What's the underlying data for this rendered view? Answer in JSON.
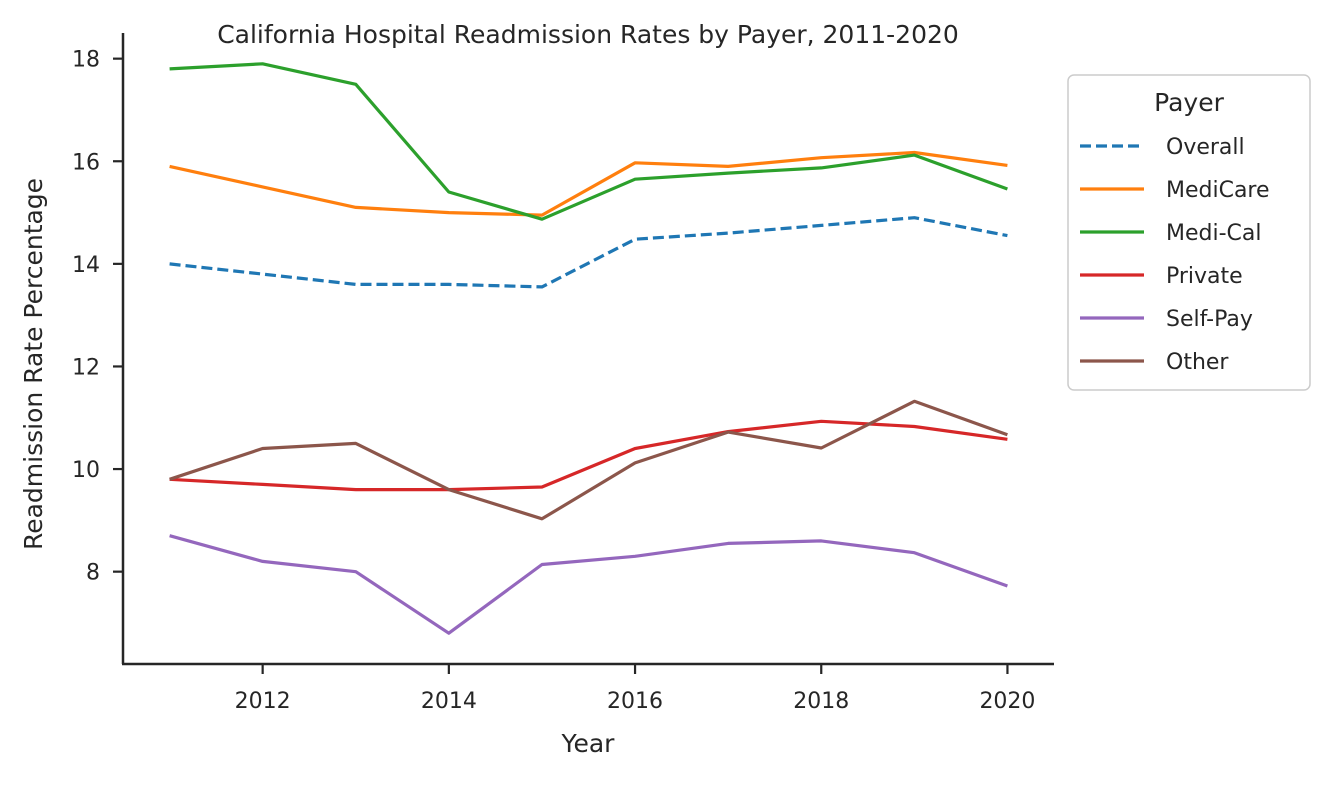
{
  "chart_data": {
    "type": "line",
    "title": "California Hospital Readmission Rates by Payer, 2011-2020",
    "xlabel": "Year",
    "ylabel": "Readmission Rate Percentage",
    "x": [
      2011,
      2012,
      2013,
      2014,
      2015,
      2016,
      2017,
      2018,
      2019,
      2020
    ],
    "xlim": [
      2010.5,
      2020.5
    ],
    "ylim": [
      6.2,
      18.5
    ],
    "xticks": [
      2012,
      2014,
      2016,
      2018,
      2020
    ],
    "yticks": [
      8,
      10,
      12,
      14,
      16,
      18
    ],
    "grid": false,
    "legend": {
      "title": "Payer",
      "placement": "outside-right"
    },
    "series": [
      {
        "name": "Overall",
        "color": "#1f77b4",
        "style": "dashed",
        "values": [
          14.0,
          13.8,
          13.6,
          13.6,
          13.55,
          14.48,
          14.6,
          14.75,
          14.9,
          14.55
        ]
      },
      {
        "name": "MediCare",
        "color": "#ff7f0e",
        "style": "solid",
        "values": [
          15.9,
          15.5,
          15.1,
          15.0,
          14.95,
          15.97,
          15.9,
          16.07,
          16.17,
          15.92
        ]
      },
      {
        "name": "Medi-Cal",
        "color": "#2ca02c",
        "style": "solid",
        "values": [
          17.8,
          17.9,
          17.5,
          15.4,
          14.87,
          15.65,
          15.77,
          15.87,
          16.12,
          15.46
        ]
      },
      {
        "name": "Private",
        "color": "#d62728",
        "style": "solid",
        "values": [
          9.8,
          9.7,
          9.6,
          9.6,
          9.65,
          10.4,
          10.73,
          10.93,
          10.83,
          10.58
        ]
      },
      {
        "name": "Self-Pay",
        "color": "#9467bd",
        "style": "solid",
        "values": [
          8.7,
          8.2,
          8.0,
          6.8,
          8.14,
          8.3,
          8.55,
          8.6,
          8.37,
          7.72
        ]
      },
      {
        "name": "Other",
        "color": "#8c564b",
        "style": "solid",
        "values": [
          9.8,
          10.4,
          10.5,
          9.6,
          9.03,
          10.12,
          10.72,
          10.41,
          11.32,
          10.67
        ]
      }
    ]
  }
}
